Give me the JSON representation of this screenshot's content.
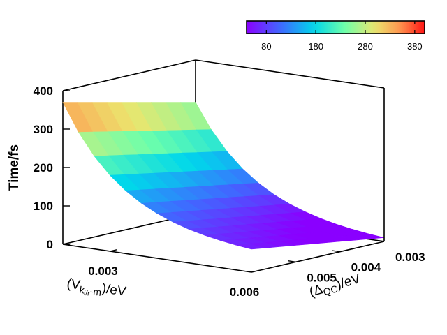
{
  "chart_data": {
    "type": "surface3d",
    "title": "",
    "zlabel": "Time/fs",
    "xlabel": {
      "prefix": "(V",
      "sub": "k",
      "subsub": "l/r",
      "sub2": "-m",
      "suffix": ")/eV"
    },
    "ylabel": {
      "prefix": "(Δ",
      "sub": "QC",
      "suffix": ")/eV"
    },
    "x_range": [
      0.002,
      0.006
    ],
    "y_range": [
      0.003,
      0.006
    ],
    "z_range": [
      0,
      400
    ],
    "z_ticks": [
      "0",
      "100",
      "200",
      "300",
      "400"
    ],
    "x_ticks": [
      "0.003",
      "0.006"
    ],
    "y_ticks": [
      "0.003",
      "0.004",
      "0.005"
    ],
    "colorbar": {
      "range": [
        40,
        400
      ],
      "ticks": [
        "80",
        "180",
        "280",
        "380"
      ],
      "position": "top"
    },
    "corners": {
      "x_min_y_max": 370,
      "x_min_y_min": 290,
      "x_max_y_max": 60,
      "x_max_y_min": 10
    },
    "grid": false,
    "colormap": "rainbow"
  }
}
